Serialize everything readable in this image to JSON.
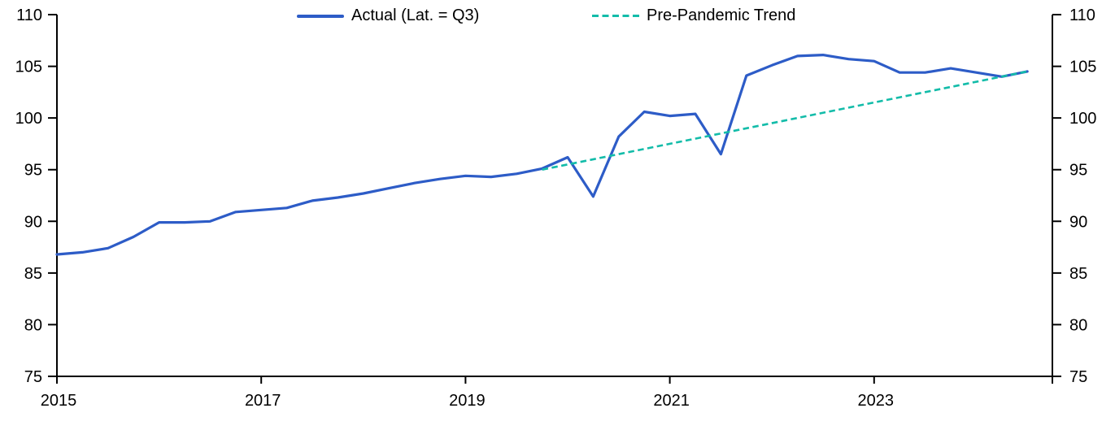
{
  "colors": {
    "background": "#FFFFFF",
    "axis": "#000000",
    "actual_line": "#2D5CC7",
    "trend_line": "#13BCA9",
    "text": "#000000"
  },
  "chart_data": {
    "type": "line",
    "title": "",
    "xlabel": "",
    "ylabel": "",
    "gridlines": false,
    "legend_position": "top",
    "y_axis_sides": "both",
    "ylim": [
      75,
      110
    ],
    "yticks": [
      75,
      80,
      85,
      90,
      95,
      100,
      105,
      110
    ],
    "x_axis": {
      "start": "2015 Q1",
      "end": "2024 Q3",
      "frequency": "quarterly",
      "tick_labels": [
        "2015",
        "2017",
        "2019",
        "2021",
        "2023"
      ]
    },
    "xticks": [
      {
        "label": "2015",
        "quarter_index": 0
      },
      {
        "label": "2017",
        "quarter_index": 8
      },
      {
        "label": "2019",
        "quarter_index": 16
      },
      {
        "label": "2021",
        "quarter_index": 24
      },
      {
        "label": "2023",
        "quarter_index": 32
      }
    ],
    "quarters": [
      "2015 Q1",
      "2015 Q2",
      "2015 Q3",
      "2015 Q4",
      "2016 Q1",
      "2016 Q2",
      "2016 Q3",
      "2016 Q4",
      "2017 Q1",
      "2017 Q2",
      "2017 Q3",
      "2017 Q4",
      "2018 Q1",
      "2018 Q2",
      "2018 Q3",
      "2018 Q4",
      "2019 Q1",
      "2019 Q2",
      "2019 Q3",
      "2019 Q4",
      "2020 Q1",
      "2020 Q2",
      "2020 Q3",
      "2020 Q4",
      "2021 Q1",
      "2021 Q2",
      "2021 Q3",
      "2021 Q4",
      "2022 Q1",
      "2022 Q2",
      "2022 Q3",
      "2022 Q4",
      "2023 Q1",
      "2023 Q2",
      "2023 Q3",
      "2023 Q4",
      "2024 Q1",
      "2024 Q2",
      "2024 Q3"
    ],
    "series": [
      {
        "name": "Actual (Lat. = Q3)",
        "style": "solid",
        "color": "#2D5CC7",
        "values": [
          86.8,
          87.0,
          87.4,
          88.5,
          89.9,
          89.9,
          90.0,
          90.9,
          91.1,
          91.3,
          92.0,
          92.3,
          92.7,
          93.2,
          93.7,
          94.1,
          94.4,
          94.3,
          94.6,
          95.1,
          96.2,
          92.4,
          98.2,
          100.6,
          100.2,
          100.4,
          96.5,
          104.1,
          105.1,
          106.0,
          106.1,
          105.7,
          105.5,
          104.4,
          104.4,
          104.8,
          104.4,
          104.0,
          104.5
        ]
      },
      {
        "name": "Pre-Pandemic Trend",
        "style": "dashed",
        "color": "#13BCA9",
        "note": "linear from 2019 Q4 to 2024 Q3",
        "x": [
          19,
          38
        ],
        "values": [
          95.0,
          104.5
        ]
      }
    ]
  }
}
